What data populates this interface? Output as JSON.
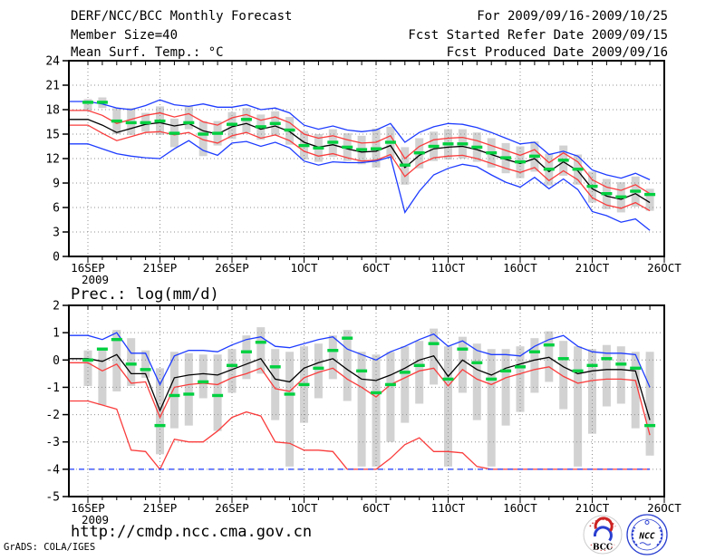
{
  "header": {
    "title": "DERF/NCC/BCC Monthly Forecast",
    "member_size": "Member Size=40",
    "for_range": "For 2009/09/16-2009/10/25",
    "fcst_started": "Fcst Started Refer Date 2009/09/15",
    "fcst_produced": "Fcst Produced Date 2009/09/16"
  },
  "footer": {
    "url": "http://cmdp.ncc.cma.gov.cn",
    "credit": "GrADS: COLA/IGES",
    "logos": [
      {
        "label": "BCC"
      },
      {
        "label": "NCC"
      }
    ]
  },
  "colors": {
    "blue": "#1e3cff",
    "red": "#fa3c3c",
    "green": "#00d040",
    "black": "#000000",
    "bar_gray": "#d2d2d2",
    "grid_gray": "#909090",
    "logo_blue": "#2a3fd0",
    "logo_red": "#cc3333"
  },
  "chart_data": [
    {
      "type": "line",
      "title": "Mean Surf. Temp.: °C",
      "ylim": [
        0,
        24
      ],
      "ytick_step": 3,
      "grid": true,
      "x_tick_labels": [
        "16SEP",
        "21SEP",
        "26SEP",
        "1OCT",
        "6OCT",
        "11OCT",
        "16OCT",
        "21OCT",
        "26OCT"
      ],
      "x_year_label": "2009",
      "days": 40,
      "bars": {
        "name": "members-range",
        "low": [
          17.9,
          18.2,
          15.0,
          14.9,
          15.3,
          14.9,
          13.4,
          15.6,
          12.3,
          13.6,
          14.4,
          15.2,
          14.3,
          14.8,
          13.7,
          11.9,
          11.6,
          12.2,
          11.7,
          11.3,
          10.9,
          12.1,
          8.8,
          10.8,
          11.7,
          11.9,
          12.0,
          11.6,
          10.9,
          10.2,
          9.6,
          10.4,
          8.7,
          9.9,
          8.8,
          6.6,
          5.8,
          5.4,
          6.1,
          5.6
        ],
        "high": [
          19.3,
          19.5,
          18.2,
          18.2,
          17.6,
          18.4,
          16.9,
          18.5,
          16.6,
          16.6,
          17.7,
          18.2,
          17.4,
          17.8,
          17.1,
          15.4,
          15.0,
          15.6,
          15.1,
          14.8,
          15.7,
          15.9,
          13.4,
          14.5,
          15.3,
          15.6,
          15.6,
          15.2,
          14.5,
          13.9,
          13.5,
          14.1,
          12.6,
          13.6,
          12.5,
          10.4,
          9.5,
          9.1,
          9.8,
          8.3
        ]
      },
      "median": {
        "name": "ensemble-median",
        "values": [
          18.9,
          18.9,
          16.6,
          16.4,
          16.4,
          16.6,
          15.1,
          16.4,
          15.0,
          15.1,
          16.2,
          16.8,
          15.9,
          16.3,
          15.5,
          13.6,
          13.3,
          14.0,
          13.4,
          13.1,
          13.2,
          14.0,
          11.2,
          12.7,
          13.5,
          13.8,
          13.8,
          13.4,
          12.7,
          12.1,
          11.6,
          12.3,
          10.7,
          11.8,
          10.7,
          8.6,
          7.7,
          7.3,
          8.0,
          7.6
        ]
      },
      "series": [
        {
          "name": "ensemble-max",
          "color": "blue",
          "values": [
            19.0,
            18.7,
            18.2,
            18.0,
            18.5,
            19.2,
            18.6,
            18.4,
            18.7,
            18.3,
            18.3,
            18.6,
            18.0,
            18.2,
            17.6,
            16.1,
            15.6,
            16.0,
            15.5,
            15.3,
            15.5,
            16.3,
            14.0,
            15.2,
            15.9,
            16.3,
            16.2,
            15.8,
            15.2,
            14.5,
            13.8,
            14.0,
            12.5,
            12.9,
            12.3,
            10.6,
            10.0,
            9.6,
            10.2,
            9.4
          ]
        },
        {
          "name": "mean-plus-spread",
          "color": "red",
          "values": [
            17.9,
            17.3,
            16.3,
            16.8,
            17.3,
            17.6,
            17.1,
            17.5,
            16.5,
            16.1,
            17.0,
            17.4,
            16.7,
            17.1,
            16.4,
            15.0,
            14.5,
            14.8,
            14.3,
            13.9,
            14.0,
            14.8,
            12.0,
            13.5,
            14.3,
            14.5,
            14.6,
            14.2,
            13.6,
            13.0,
            12.4,
            13.1,
            11.5,
            12.7,
            11.6,
            9.4,
            8.5,
            8.1,
            8.8,
            7.7
          ]
        },
        {
          "name": "mean-minus-spread",
          "color": "red",
          "values": [
            16.1,
            15.1,
            14.2,
            14.7,
            15.2,
            15.3,
            14.9,
            15.2,
            14.3,
            13.9,
            14.8,
            15.2,
            14.5,
            14.9,
            14.2,
            12.9,
            12.3,
            12.6,
            12.1,
            11.7,
            11.8,
            12.5,
            9.8,
            11.3,
            12.1,
            12.3,
            12.4,
            12.0,
            11.4,
            10.8,
            10.3,
            10.9,
            9.3,
            10.5,
            9.4,
            7.2,
            6.3,
            5.9,
            6.6,
            5.6
          ]
        },
        {
          "name": "ensemble-min",
          "color": "blue",
          "values": [
            13.8,
            13.2,
            12.6,
            12.3,
            12.1,
            12.0,
            13.2,
            14.2,
            13.0,
            12.4,
            13.9,
            14.1,
            13.5,
            14.0,
            13.3,
            11.7,
            11.2,
            11.6,
            11.5,
            11.5,
            11.7,
            12.2,
            5.4,
            8.0,
            10.0,
            10.8,
            11.3,
            11.0,
            10.0,
            9.1,
            8.5,
            9.7,
            8.3,
            9.5,
            8.2,
            5.5,
            5.0,
            4.2,
            4.6,
            3.2
          ]
        },
        {
          "name": "ensemble-mean",
          "color": "black",
          "values": [
            16.8,
            16.1,
            15.2,
            15.7,
            16.2,
            16.4,
            16.0,
            16.3,
            15.4,
            15.0,
            15.9,
            16.3,
            15.6,
            16.0,
            15.3,
            14.0,
            13.4,
            13.7,
            13.2,
            12.8,
            12.9,
            13.6,
            10.9,
            12.4,
            13.2,
            13.4,
            13.5,
            13.1,
            12.5,
            11.9,
            11.4,
            12.0,
            10.4,
            11.6,
            10.5,
            8.3,
            7.4,
            7.0,
            7.7,
            6.6
          ]
        }
      ]
    },
    {
      "type": "line",
      "title": "Prec.: log(mm/d)",
      "ylim": [
        -5,
        2
      ],
      "ytick_step": 1,
      "grid": true,
      "x_tick_labels": [
        "16SEP",
        "21SEP",
        "26SEP",
        "1OCT",
        "6OCT",
        "11OCT",
        "16OCT",
        "21OCT",
        "26OCT"
      ],
      "x_year_label": "2009",
      "days": 40,
      "bars": {
        "name": "members-range",
        "low": [
          -0.95,
          -1.65,
          -1.15,
          -0.95,
          -0.65,
          -3.45,
          -2.5,
          -2.4,
          -1.4,
          -2.6,
          -1.2,
          -0.7,
          -0.5,
          -2.2,
          -3.9,
          -2.3,
          -1.4,
          -0.7,
          -1.5,
          -3.9,
          -3.9,
          -3.0,
          -2.3,
          -1.6,
          -0.9,
          -3.9,
          -1.2,
          -2.2,
          -3.9,
          -2.4,
          -1.9,
          -1.2,
          -0.8,
          -1.8,
          -3.9,
          -2.7,
          -1.7,
          -1.6,
          -2.5,
          -3.5
        ],
        "high": [
          0.35,
          0.35,
          1.1,
          0.8,
          0.35,
          -0.3,
          0.3,
          0.25,
          0.2,
          0.2,
          0.4,
          0.9,
          1.2,
          0.4,
          0.3,
          0.5,
          0.6,
          0.9,
          1.1,
          0.3,
          0.2,
          0.3,
          0.5,
          0.7,
          1.15,
          0.5,
          0.85,
          0.6,
          0.4,
          0.4,
          0.5,
          0.8,
          1.05,
          0.7,
          0.5,
          0.4,
          0.55,
          0.5,
          0.3,
          0.3
        ]
      },
      "median": {
        "name": "ensemble-median",
        "values": [
          0.0,
          0.4,
          0.75,
          -0.15,
          -0.35,
          -2.4,
          -1.3,
          -1.25,
          -0.8,
          -1.3,
          -0.2,
          0.3,
          0.65,
          -0.25,
          -1.25,
          -0.9,
          -0.3,
          0.35,
          0.8,
          -0.4,
          -1.2,
          -0.9,
          -0.45,
          -0.2,
          0.6,
          -0.7,
          0.4,
          -0.1,
          -0.7,
          -0.4,
          -0.25,
          0.3,
          0.55,
          0.05,
          -0.4,
          -0.2,
          0.05,
          -0.15,
          -0.3,
          -2.4
        ]
      },
      "series": [
        {
          "name": "ensemble-max",
          "color": "blue",
          "values": [
            0.9,
            0.75,
            1.0,
            0.25,
            0.25,
            -0.9,
            0.15,
            0.35,
            0.35,
            0.3,
            0.55,
            0.75,
            0.85,
            0.5,
            0.45,
            0.6,
            0.75,
            0.85,
            0.4,
            0.2,
            0.0,
            0.3,
            0.5,
            0.75,
            0.95,
            0.5,
            0.7,
            0.35,
            0.2,
            0.2,
            0.15,
            0.5,
            0.75,
            0.9,
            0.5,
            0.3,
            0.25,
            0.25,
            0.2,
            -1.0
          ]
        },
        {
          "name": "mean-plus-spread",
          "color": "red",
          "values": [
            -0.1,
            -0.4,
            -0.15,
            -0.85,
            -0.8,
            -2.1,
            -1.0,
            -0.9,
            -0.85,
            -0.9,
            -0.65,
            -0.5,
            -0.3,
            -1.05,
            -1.15,
            -0.65,
            -0.45,
            -0.3,
            -0.7,
            -1.0,
            -1.35,
            -0.9,
            -0.65,
            -0.4,
            -0.3,
            -0.95,
            -0.35,
            -0.7,
            -0.9,
            -0.65,
            -0.5,
            -0.35,
            -0.25,
            -0.6,
            -0.85,
            -0.75,
            -0.7,
            -0.7,
            -0.75,
            -2.75
          ]
        },
        {
          "name": "mean-minus-spread",
          "color": "red",
          "values": [
            -1.5,
            -1.65,
            -1.8,
            -3.3,
            -3.35,
            -4.0,
            -2.9,
            -3.0,
            -3.0,
            -2.6,
            -2.1,
            -1.9,
            -2.05,
            -3.0,
            -3.05,
            -3.3,
            -3.3,
            -3.35,
            -4.0,
            -4.0,
            -4.0,
            -3.6,
            -3.1,
            -2.85,
            -3.35,
            -3.35,
            -3.4,
            -3.9,
            -4.0,
            -4.0,
            -4.0,
            -4.0,
            -4.0,
            -4.0,
            -4.0,
            -4.0,
            -4.0,
            -4.0,
            -4.0,
            -4.0
          ]
        },
        {
          "name": "ensemble-min",
          "color": "blue",
          "dashed": true,
          "values": [
            -4.0,
            -4.0,
            -4.0,
            -4.0,
            -4.0,
            -4.0,
            -4.0,
            -4.0,
            -4.0,
            -4.0,
            -4.0,
            -4.0,
            -4.0,
            -4.0,
            -4.0,
            -4.0,
            -4.0,
            -4.0,
            -4.0,
            -4.0,
            -4.0,
            -4.0,
            -4.0,
            -4.0,
            -4.0,
            -4.0,
            -4.0,
            -4.0,
            -4.0,
            -4.0,
            -4.0,
            -4.0,
            -4.0,
            -4.0,
            -4.0,
            -4.0,
            -4.0,
            -4.0,
            -4.0,
            -4.0
          ]
        },
        {
          "name": "ensemble-mean",
          "color": "black",
          "values": [
            0.05,
            -0.05,
            0.2,
            -0.5,
            -0.5,
            -1.85,
            -0.65,
            -0.55,
            -0.5,
            -0.55,
            -0.35,
            -0.15,
            0.05,
            -0.7,
            -0.8,
            -0.3,
            -0.1,
            0.05,
            -0.35,
            -0.7,
            -0.75,
            -0.55,
            -0.3,
            0.0,
            0.15,
            -0.6,
            0.0,
            -0.35,
            -0.55,
            -0.3,
            -0.15,
            0.0,
            0.1,
            -0.25,
            -0.5,
            -0.4,
            -0.35,
            -0.35,
            -0.4,
            -2.2
          ]
        }
      ]
    }
  ]
}
